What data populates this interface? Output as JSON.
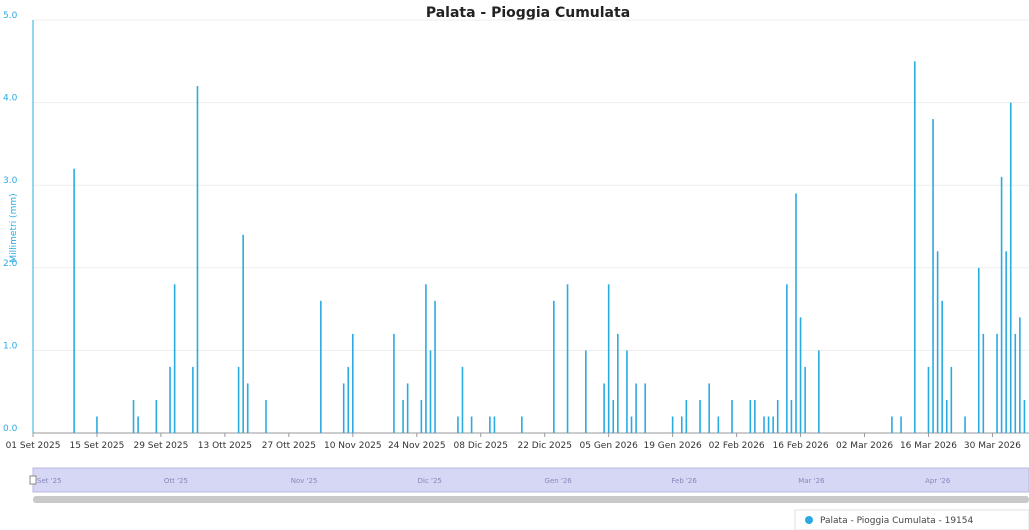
{
  "chart_data": {
    "type": "bar",
    "title": "Palata - Pioggia Cumulata",
    "y_label": "Millimetri (mm)",
    "ylim": [
      0,
      5
    ],
    "yticks": [
      {
        "value": 0,
        "label": "0.0"
      },
      {
        "value": 1,
        "label": "1.0"
      },
      {
        "value": 2,
        "label": "2.0"
      },
      {
        "value": 3,
        "label": "3.0"
      },
      {
        "value": 4,
        "label": "4.0"
      },
      {
        "value": 5,
        "label": "5.0"
      }
    ],
    "xlim": [
      "2025-09-01",
      "2026-04-07"
    ],
    "xticks": [
      {
        "value": "2025-09-01",
        "label": "01 Set 2025"
      },
      {
        "value": "2025-09-15",
        "label": "15 Set 2025"
      },
      {
        "value": "2025-09-29",
        "label": "29 Set 2025"
      },
      {
        "value": "2025-10-13",
        "label": "13 Ott 2025"
      },
      {
        "value": "2025-10-27",
        "label": "27 Ott 2025"
      },
      {
        "value": "2025-11-10",
        "label": "10 Nov 2025"
      },
      {
        "value": "2025-11-24",
        "label": "24 Nov 2025"
      },
      {
        "value": "2025-12-08",
        "label": "08 Dic 2025"
      },
      {
        "value": "2025-12-22",
        "label": "22 Dic 2025"
      },
      {
        "value": "2026-01-05",
        "label": "05 Gen 2026"
      },
      {
        "value": "2026-01-19",
        "label": "19 Gen 2026"
      },
      {
        "value": "2026-02-02",
        "label": "02 Feb 2026"
      },
      {
        "value": "2026-02-16",
        "label": "16 Feb 2026"
      },
      {
        "value": "2026-03-02",
        "label": "02 Mar 2026"
      },
      {
        "value": "2026-03-16",
        "label": "16 Mar 2026"
      },
      {
        "value": "2026-03-30",
        "label": "30 Mar 2026"
      }
    ],
    "grid": true,
    "x": [
      "2025-09-10",
      "2025-09-15",
      "2025-09-23",
      "2025-09-24",
      "2025-09-28",
      "2025-10-01",
      "2025-10-02",
      "2025-10-06",
      "2025-10-07",
      "2025-10-16",
      "2025-10-17",
      "2025-10-18",
      "2025-10-22",
      "2025-11-03",
      "2025-11-08",
      "2025-11-09",
      "2025-11-10",
      "2025-11-19",
      "2025-11-21",
      "2025-11-22",
      "2025-11-25",
      "2025-11-26",
      "2025-11-27",
      "2025-11-28",
      "2025-12-03",
      "2025-12-04",
      "2025-12-06",
      "2025-12-10",
      "2025-12-11",
      "2025-12-17",
      "2025-12-24",
      "2025-12-27",
      "2025-12-31",
      "2026-01-04",
      "2026-01-05",
      "2026-01-06",
      "2026-01-07",
      "2026-01-09",
      "2026-01-10",
      "2026-01-11",
      "2026-01-13",
      "2026-01-19",
      "2026-01-21",
      "2026-01-22",
      "2026-01-25",
      "2026-01-27",
      "2026-01-29",
      "2026-02-01",
      "2026-02-05",
      "2026-02-06",
      "2026-02-08",
      "2026-02-09",
      "2026-02-10",
      "2026-02-11",
      "2026-02-13",
      "2026-02-14",
      "2026-02-15",
      "2026-02-16",
      "2026-02-17",
      "2026-02-20",
      "2026-03-08",
      "2026-03-10",
      "2026-03-13",
      "2026-03-16",
      "2026-03-17",
      "2026-03-18",
      "2026-03-19",
      "2026-03-20",
      "2026-03-21",
      "2026-03-24",
      "2026-03-27",
      "2026-03-28",
      "2026-03-31",
      "2026-04-01",
      "2026-04-02",
      "2026-04-03",
      "2026-04-04",
      "2026-04-05",
      "2026-04-06"
    ],
    "series": [
      {
        "name": "Palata - Pioggia Cumulata - 19154",
        "color": "#29abe2",
        "values": [
          3.2,
          0.2,
          0.4,
          0.2,
          0.4,
          0.8,
          1.8,
          0.8,
          4.2,
          0.8,
          2.4,
          0.6,
          0.4,
          1.6,
          0.6,
          0.8,
          1.2,
          1.2,
          0.4,
          0.6,
          0.4,
          1.8,
          1.0,
          1.6,
          0.2,
          0.8,
          0.2,
          0.2,
          0.2,
          0.2,
          1.6,
          1.8,
          1.0,
          0.6,
          1.8,
          0.4,
          1.2,
          1.0,
          0.2,
          0.6,
          0.6,
          0.2,
          0.2,
          0.4,
          0.4,
          0.6,
          0.2,
          0.4,
          0.4,
          0.4,
          0.2,
          0.2,
          0.2,
          0.4,
          1.8,
          0.4,
          2.9,
          1.4,
          0.8,
          1.0,
          0.2,
          0.2,
          4.5,
          0.8,
          3.8,
          2.2,
          1.6,
          0.4,
          0.8,
          0.2,
          2.0,
          1.2,
          1.2,
          3.1,
          2.2,
          4.0,
          1.2,
          1.4,
          0.4
        ]
      }
    ],
    "navigator": {
      "labels": [
        "Set '25",
        "Ott '25",
        "Nov '25",
        "Dic '25",
        "Gen '26",
        "Feb '26",
        "Mar '26",
        "Apr '26"
      ]
    }
  }
}
